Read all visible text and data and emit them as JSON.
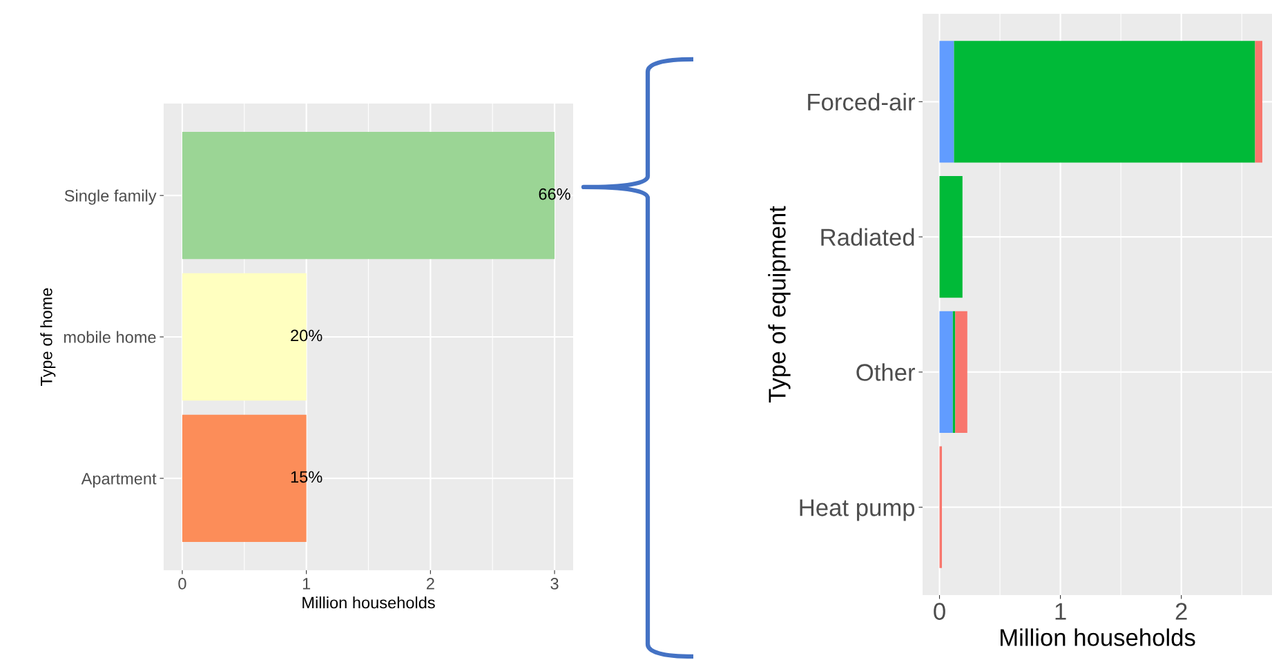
{
  "chart_data": [
    {
      "type": "bar",
      "orientation": "horizontal",
      "categories": [
        "Single family",
        "mobile home",
        "Apartment"
      ],
      "values": [
        3,
        1,
        1
      ],
      "colors": [
        "#9bd595",
        "#ffffc0",
        "#fc8d59"
      ],
      "annotations": [
        "66%",
        "20%",
        "15%"
      ],
      "xlim": [
        -0.15,
        3.15
      ],
      "xticks": [
        0,
        {
          "value": 0.5,
          "label": null
        },
        1,
        {
          "value": 1.5,
          "label": null
        },
        2,
        {
          "value": 2.5,
          "label": null
        },
        3
      ],
      "xlabel": "Million households",
      "ylabel": "Type of home",
      "grid": true
    },
    {
      "type": "bar",
      "orientation": "horizontal",
      "stacked": true,
      "categories": [
        "Forced-air",
        "Radiated",
        "Other",
        "Heat pump"
      ],
      "series": [
        {
          "color": "#619cff",
          "values": [
            0.12,
            0,
            0.11,
            0
          ]
        },
        {
          "color": "#00ba38",
          "values": [
            2.49,
            0.19,
            0.02,
            0
          ]
        },
        {
          "color": "#f8766d",
          "values": [
            0.06,
            0,
            0.1,
            0.02
          ]
        }
      ],
      "xlim": [
        -0.14,
        2.75
      ],
      "xticks": [
        0,
        {
          "value": 0.5,
          "label": null
        },
        1,
        {
          "value": 1.5,
          "label": null
        },
        2,
        {
          "value": 2.5,
          "label": null
        }
      ],
      "xlabel": "Million households",
      "ylabel": "Type of equipment",
      "grid": true
    }
  ]
}
